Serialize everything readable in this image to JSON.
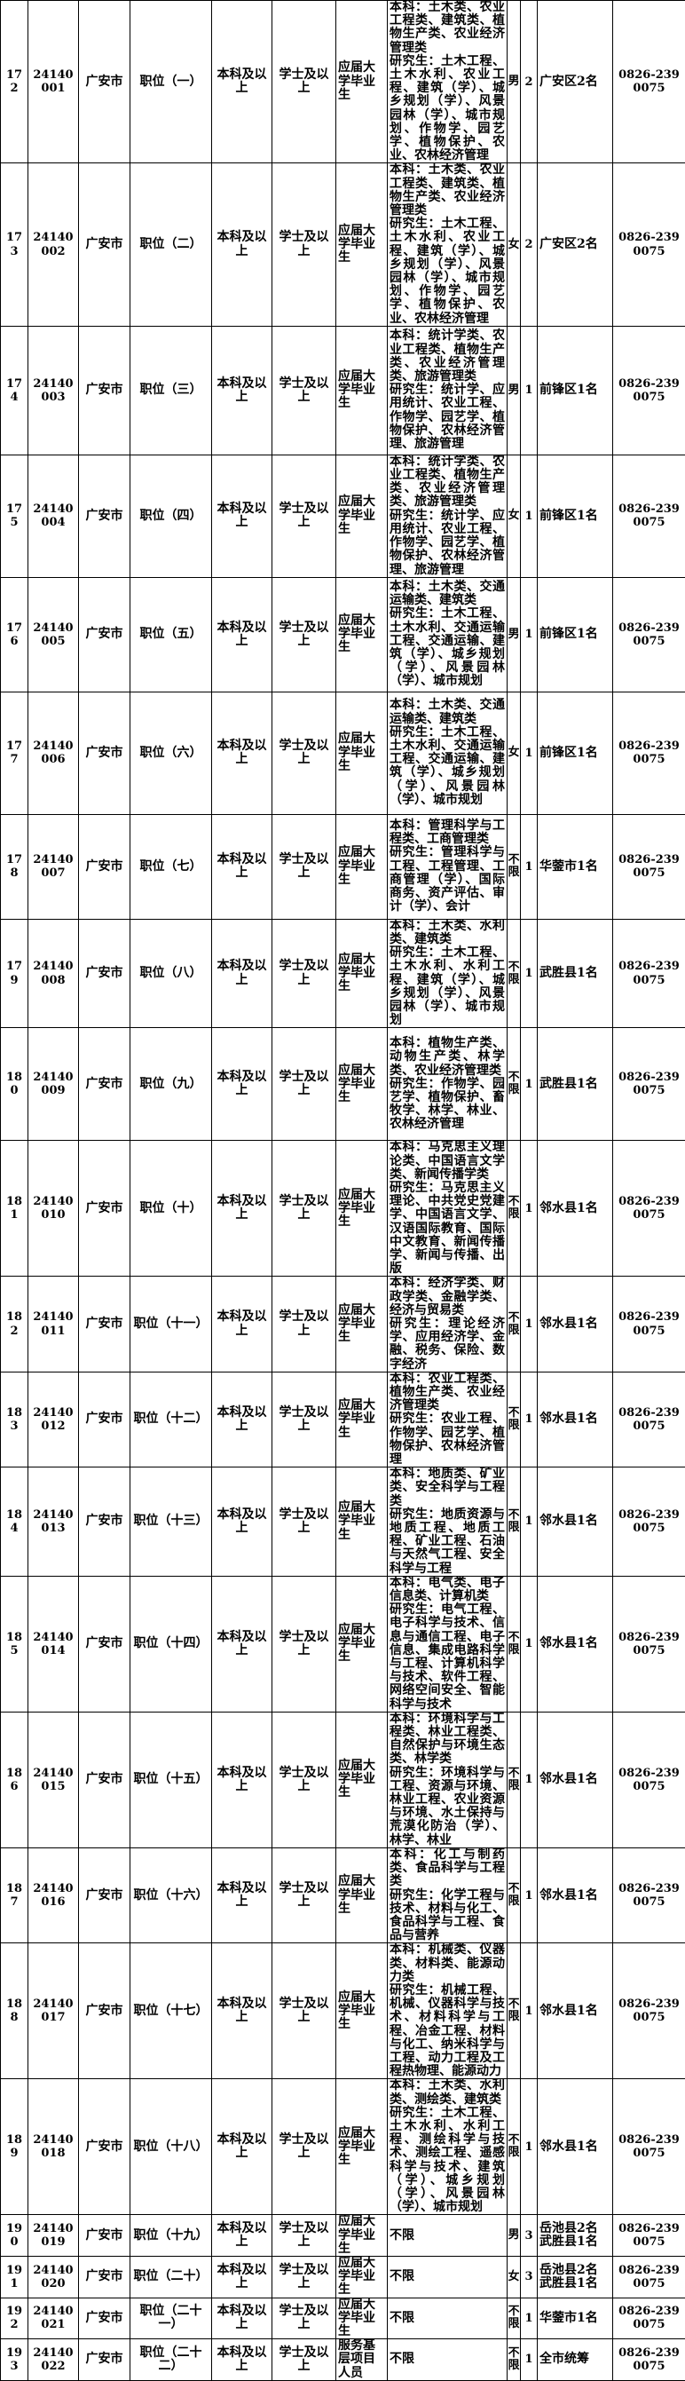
{
  "rows": [
    {
      "no": "172",
      "code": "24140001",
      "city": "广安市",
      "position": "职位（一）",
      "education": "本科及以上",
      "degree": "学士及以上",
      "target": "应届大学毕业生",
      "major": "本科：土木类、农业工程类、建筑类、植物生产类、农业经济管理类\n研究生：土木工程、土木水利、农业工程、建筑（学）、城乡规划（学）、风景园林（学）、城市规划、作物学、园艺学、植物保护、农业、农林经济管理",
      "gender": "男",
      "count": "2",
      "area": "广安区2名",
      "phone": "0826-2390075"
    },
    {
      "no": "173",
      "code": "24140002",
      "city": "广安市",
      "position": "职位（二）",
      "education": "本科及以上",
      "degree": "学士及以上",
      "target": "应届大学毕业生",
      "major": "本科：土木类、农业工程类、建筑类、植物生产类、农业经济管理类\n研究生：土木工程、土木水利、农业工程、建筑（学）、城乡规划（学）、风景园林（学）、城市规划、作物学、园艺学、植物保护、农业、农林经济管理",
      "gender": "女",
      "count": "2",
      "area": "广安区2名",
      "phone": "0826-2390075"
    },
    {
      "no": "174",
      "code": "24140003",
      "city": "广安市",
      "position": "职位（三）",
      "education": "本科及以上",
      "degree": "学士及以上",
      "target": "应届大学毕业生",
      "major": "本科：统计学类、农业工程类、植物生产类、农业经济管理类、旅游管理类\n研究生：统计学、应用统计、农业工程、作物学、园艺学、植物保护、农林经济管理、旅游管理",
      "gender": "男",
      "count": "1",
      "area": "前锋区1名",
      "phone": "0826-2390075"
    },
    {
      "no": "175",
      "code": "24140004",
      "city": "广安市",
      "position": "职位（四）",
      "education": "本科及以上",
      "degree": "学士及以上",
      "target": "应届大学毕业生",
      "major": "本科：统计学类、农业工程类、植物生产类、农业经济管理类、旅游管理类\n研究生：统计学、应用统计、农业工程、作物学、园艺学、植物保护、农林经济管理、旅游管理",
      "gender": "女",
      "count": "1",
      "area": "前锋区1名",
      "phone": "0826-2390075"
    },
    {
      "no": "176",
      "code": "24140005",
      "city": "广安市",
      "position": "职位（五）",
      "education": "本科及以上",
      "degree": "学士及以上",
      "target": "应届大学毕业生",
      "major": "本科：土木类、交通运输类、建筑类\n研究生：土木工程、土木水利、交通运输工程、交通运输、建筑（学）、城乡规划（学）、风景园林（学）、城市规划",
      "gender": "男",
      "count": "1",
      "area": "前锋区1名",
      "phone": "0826-2390075"
    },
    {
      "no": "177",
      "code": "24140006",
      "city": "广安市",
      "position": "职位（六）",
      "education": "本科及以上",
      "degree": "学士及以上",
      "target": "应届大学毕业生",
      "major": "本科：土木类、交通运输类、建筑类\n研究生：土木工程、土木水利、交通运输工程、交通运输、建筑（学）、城乡规划（学）、风景园林（学）、城市规划",
      "gender": "女",
      "count": "1",
      "area": "前锋区1名",
      "phone": "0826-2390075"
    },
    {
      "no": "178",
      "code": "24140007",
      "city": "广安市",
      "position": "职位（七）",
      "education": "本科及以上",
      "degree": "学士及以上",
      "target": "应届大学毕业生",
      "major": "本科：管理科学与工程类、工商管理类\n研究生：管理科学与工程、工程管理、工商管理（学）、国际商务、资产评估、审计（学）、会计",
      "gender": "不限",
      "count": "1",
      "area": "华蓥市1名",
      "phone": "0826-2390075"
    },
    {
      "no": "179",
      "code": "24140008",
      "city": "广安市",
      "position": "职位（八）",
      "education": "本科及以上",
      "degree": "学士及以上",
      "target": "应届大学毕业生",
      "major": "本科：土木类、水利类、建筑类\n研究生：土木工程、土木水利、水利工程、建筑（学）、城乡规划（学）、风景园林（学）、城市规划",
      "gender": "不限",
      "count": "1",
      "area": "武胜县1名",
      "phone": "0826-2390075"
    },
    {
      "no": "180",
      "code": "24140009",
      "city": "广安市",
      "position": "职位（九）",
      "education": "本科及以上",
      "degree": "学士及以上",
      "target": "应届大学毕业生",
      "major": "本科：植物生产类、动物生产类、林学类、农业经济管理类\n研究生：作物学、园艺学、植物保护、畜牧学、林学、林业、农林经济管理",
      "gender": "不限",
      "count": "1",
      "area": "武胜县1名",
      "phone": "0826-2390075"
    },
    {
      "no": "181",
      "code": "24140010",
      "city": "广安市",
      "position": "职位（十）",
      "education": "本科及以上",
      "degree": "学士及以上",
      "target": "应届大学毕业生",
      "major": "本科：马克思主义理论类、中国语言文学类、新闻传播学类\n研究生：马克思主义理论、中共党史党建学、中国语言文学、汉语国际教育、国际中文教育、新闻传播学、新闻与传播、出版",
      "gender": "不限",
      "count": "1",
      "area": "邻水县1名",
      "phone": "0826-2390075"
    },
    {
      "no": "182",
      "code": "24140011",
      "city": "广安市",
      "position": "职位（十一）",
      "education": "本科及以上",
      "degree": "学士及以上",
      "target": "应届大学毕业生",
      "major": "本科：经济学类、财政学类、金融学类、经济与贸易类\n研究生：理论经济学、应用经济学、金融、税务、保险、数字经济",
      "gender": "不限",
      "count": "1",
      "area": "邻水县1名",
      "phone": "0826-2390075"
    },
    {
      "no": "183",
      "code": "24140012",
      "city": "广安市",
      "position": "职位（十二）",
      "education": "本科及以上",
      "degree": "学士及以上",
      "target": "应届大学毕业生",
      "major": "本科：农业工程类、植物生产类、农业经济管理类\n研究生：农业工程、作物学、园艺学、植物保护、农林经济管理",
      "gender": "不限",
      "count": "1",
      "area": "邻水县1名",
      "phone": "0826-2390075"
    },
    {
      "no": "184",
      "code": "24140013",
      "city": "广安市",
      "position": "职位（十三）",
      "education": "本科及以上",
      "degree": "学士及以上",
      "target": "应届大学毕业生",
      "major": "本科：地质类、矿业类、安全科学与工程类\n研究生：地质资源与地质工程、地质工程、矿业工程、石油与天然气工程、安全科学与工程",
      "gender": "不限",
      "count": "1",
      "area": "邻水县1名",
      "phone": "0826-2390075"
    },
    {
      "no": "185",
      "code": "24140014",
      "city": "广安市",
      "position": "职位（十四）",
      "education": "本科及以上",
      "degree": "学士及以上",
      "target": "应届大学毕业生",
      "major": "本科：电气类、电子信息类、计算机类\n研究生：电气工程、电子科学与技术、信息与通信工程、电子信息、集成电路科学与工程、计算机科学与技术、软件工程、网络空间安全、智能科学与技术",
      "gender": "不限",
      "count": "1",
      "area": "邻水县1名",
      "phone": "0826-2390075"
    },
    {
      "no": "186",
      "code": "24140015",
      "city": "广安市",
      "position": "职位（十五）",
      "education": "本科及以上",
      "degree": "学士及以上",
      "target": "应届大学毕业生",
      "major": "本科：环境科学与工程类、林业工程类、自然保护与环境生态类、林学类\n研究生：环境科学与工程、资源与环境、林业工程、农业资源与环境、水土保持与荒漠化防治（学）、林学、林业",
      "gender": "不限",
      "count": "1",
      "area": "邻水县1名",
      "phone": "0826-2390075"
    },
    {
      "no": "187",
      "code": "24140016",
      "city": "广安市",
      "position": "职位（十六）",
      "education": "本科及以上",
      "degree": "学士及以上",
      "target": "应届大学毕业生",
      "major": "本科：化工与制药类、食品科学与工程类\n研究生：化学工程与技术、材料与化工、食品科学与工程、食品与营养",
      "gender": "不限",
      "count": "1",
      "area": "邻水县1名",
      "phone": "0826-2390075"
    },
    {
      "no": "188",
      "code": "24140017",
      "city": "广安市",
      "position": "职位（十七）",
      "education": "本科及以上",
      "degree": "学士及以上",
      "target": "应届大学毕业生",
      "major": "本科：机械类、仪器类、材料类、能源动力类\n研究生：机械工程、机械、仪器科学与技术、材料科学与工程、冶金工程、材料与化工、纳米科学与工程、动力工程及工程热物理、能源动力",
      "gender": "不限",
      "count": "1",
      "area": "邻水县1名",
      "phone": "0826-2390075"
    },
    {
      "no": "189",
      "code": "24140018",
      "city": "广安市",
      "position": "职位（十八）",
      "education": "本科及以上",
      "degree": "学士及以上",
      "target": "应届大学毕业生",
      "major": "本科：土木类、水利类、测绘类、建筑类\n研究生：土木工程、土木水利、水利工程、测绘科学与技术、测绘工程、遥感科学与技术、建筑（学）、城乡规划（学）、风景园林（学）、城市规划",
      "gender": "不限",
      "count": "1",
      "area": "邻水县1名",
      "phone": "0826-2390075"
    },
    {
      "no": "190",
      "code": "24140019",
      "city": "广安市",
      "position": "职位（十九）",
      "education": "本科及以上",
      "degree": "学士及以上",
      "target": "应届大学毕业生",
      "major": "不限",
      "gender": "男",
      "count": "3",
      "area": "岳池县2名\n武胜县1名",
      "phone": "0826-2390075"
    },
    {
      "no": "191",
      "code": "24140020",
      "city": "广安市",
      "position": "职位（二十）",
      "education": "本科及以上",
      "degree": "学士及以上",
      "target": "应届大学毕业生",
      "major": "不限",
      "gender": "女",
      "count": "3",
      "area": "岳池县2名\n武胜县1名",
      "phone": "0826-2390075"
    },
    {
      "no": "192",
      "code": "24140021",
      "city": "广安市",
      "position": "职位（二十一）",
      "education": "本科及以上",
      "degree": "学士及以上",
      "target": "应届大学毕业生",
      "major": "不限",
      "gender": "不限",
      "count": "1",
      "area": "华蓥市1名",
      "phone": "0826-2390075"
    },
    {
      "no": "193",
      "code": "24140022",
      "city": "广安市",
      "position": "职位（二十二）",
      "education": "本科及以上",
      "degree": "学士及以上",
      "target": "服务基层项目人员",
      "major": "不限",
      "gender": "不限",
      "count": "1",
      "area": "全市统筹",
      "phone": "0826-2390075"
    }
  ]
}
